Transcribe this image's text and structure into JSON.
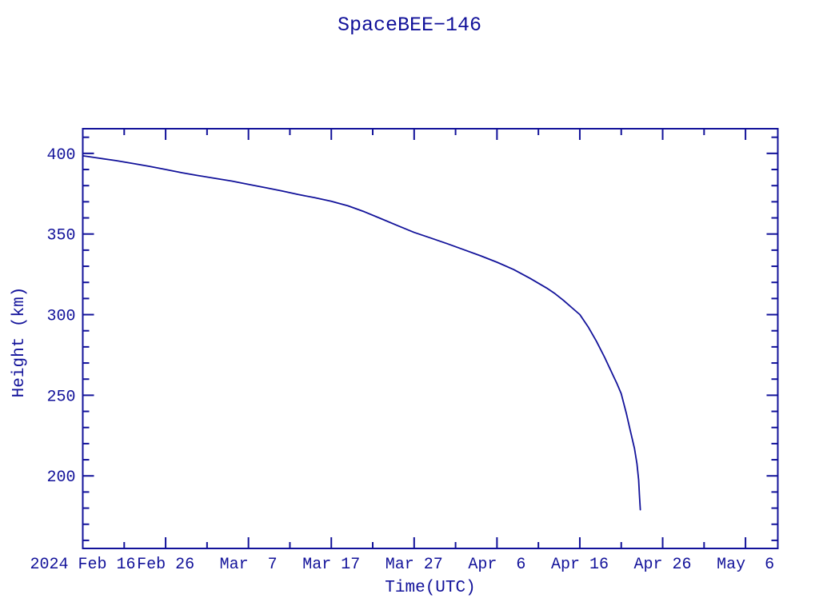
{
  "colors": {
    "plot": "#12129a",
    "background": "#ffffff"
  },
  "chart_data": {
    "type": "line",
    "title": "SpaceBEE−146",
    "xlabel": "Time(UTC)",
    "ylabel": "Height (km)",
    "grid": false,
    "legend": null,
    "x_unit": "days since 2024 Feb 16 00:00 UTC",
    "xlim": [
      0,
      83.9
    ],
    "ylim": [
      155,
      415.3
    ],
    "x_major_ticks": [
      {
        "day": 0,
        "label": "2024 Feb 16"
      },
      {
        "day": 10,
        "label": "Feb 26"
      },
      {
        "day": 20,
        "label": "Mar  7"
      },
      {
        "day": 30,
        "label": "Mar 17"
      },
      {
        "day": 40,
        "label": "Mar 27"
      },
      {
        "day": 50,
        "label": "Apr  6"
      },
      {
        "day": 60,
        "label": "Apr 16"
      },
      {
        "day": 70,
        "label": "Apr 26"
      },
      {
        "day": 80,
        "label": "May  6"
      }
    ],
    "x_minor_step_days": 5,
    "y_major_ticks": [
      200,
      250,
      300,
      350,
      400
    ],
    "y_minor_step": 10,
    "series": [
      {
        "name": "SpaceBEE-146 orbital height",
        "points": [
          [
            0,
            398.5
          ],
          [
            2,
            397.0
          ],
          [
            4,
            395.5
          ],
          [
            6,
            393.8
          ],
          [
            8,
            392.0
          ],
          [
            10,
            390.0
          ],
          [
            12,
            388.0
          ],
          [
            14,
            386.2
          ],
          [
            16,
            384.5
          ],
          [
            18,
            382.8
          ],
          [
            20,
            380.8
          ],
          [
            22,
            378.8
          ],
          [
            24,
            376.8
          ],
          [
            26,
            374.5
          ],
          [
            28,
            372.5
          ],
          [
            30,
            370.3
          ],
          [
            32,
            367.5
          ],
          [
            34,
            363.8
          ],
          [
            36,
            359.5
          ],
          [
            38,
            355.2
          ],
          [
            40,
            351.0
          ],
          [
            42,
            347.5
          ],
          [
            44,
            344.0
          ],
          [
            46,
            340.3
          ],
          [
            48,
            336.5
          ],
          [
            50,
            332.5
          ],
          [
            52,
            328.0
          ],
          [
            54,
            322.5
          ],
          [
            56,
            316.5
          ],
          [
            57,
            313.0
          ],
          [
            58,
            309.0
          ],
          [
            59,
            304.5
          ],
          [
            60,
            300.0
          ],
          [
            61,
            292.5
          ],
          [
            62,
            283.5
          ],
          [
            63,
            273.5
          ],
          [
            64,
            262.5
          ],
          [
            64.5,
            257.0
          ],
          [
            65,
            251.0
          ],
          [
            65.6,
            239.0
          ],
          [
            66.1,
            228.0
          ],
          [
            66.6,
            217.0
          ],
          [
            66.9,
            207.5
          ],
          [
            67.1,
            197.5
          ],
          [
            67.2,
            188.0
          ],
          [
            67.3,
            179.0
          ]
        ]
      }
    ]
  }
}
